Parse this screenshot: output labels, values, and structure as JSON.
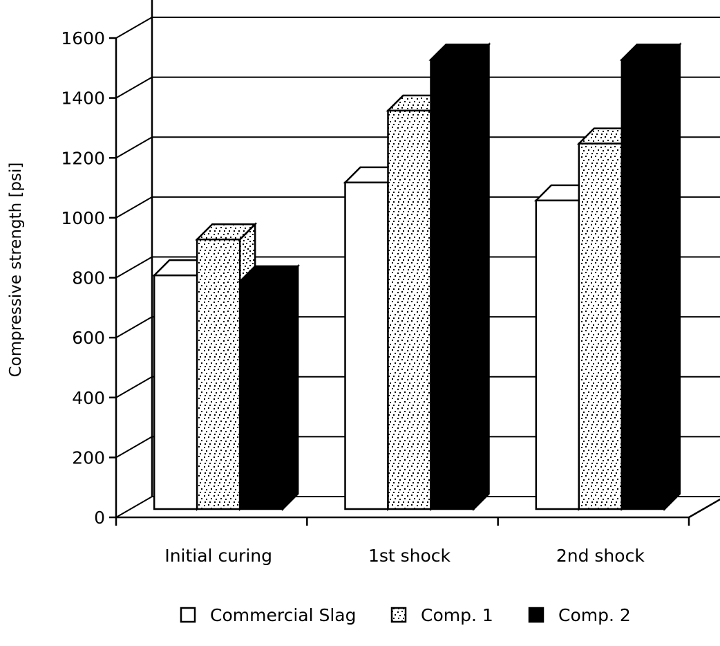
{
  "chart_data": {
    "type": "bar",
    "style": "3d-clustered",
    "ylabel": "Compressive strength [psi]",
    "ylim": [
      0,
      1600
    ],
    "yticks": [
      0,
      200,
      400,
      600,
      800,
      1000,
      1200,
      1400,
      1600
    ],
    "ytick_labels": [
      "0",
      "200",
      "400",
      "600",
      "800",
      "1000",
      "1200",
      "1400",
      "1600"
    ],
    "categories": [
      "Initial curing",
      "1st shock",
      "2nd shock"
    ],
    "grid": true,
    "legend_position": "bottom",
    "series": [
      {
        "name": "Commercial Slag",
        "values": [
          780,
          1090,
          1030
        ],
        "fill": "white"
      },
      {
        "name": "Comp. 1",
        "values": [
          900,
          1330,
          1220
        ],
        "fill": "stipple"
      },
      {
        "name": "Comp. 2",
        "values": [
          760,
          1500,
          1500
        ],
        "fill": "black"
      }
    ]
  }
}
